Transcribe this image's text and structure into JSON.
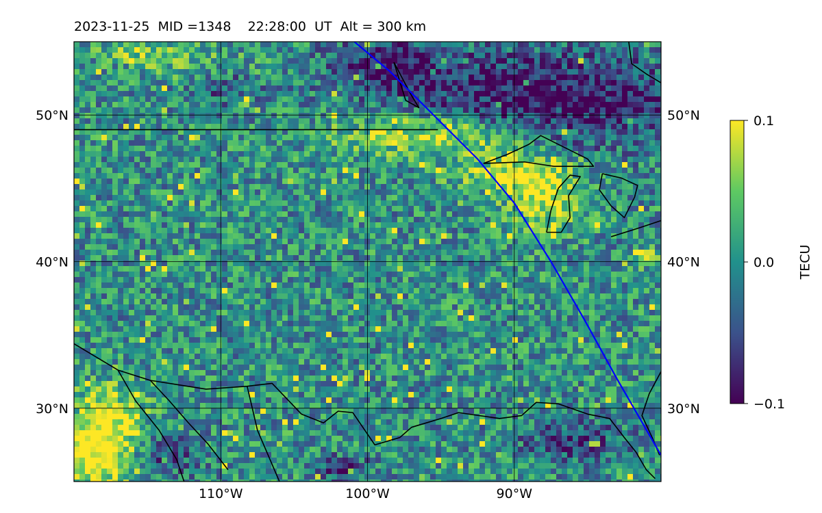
{
  "title": "2023-11-25  MID =1348    22:28:00  UT  Alt = 300 km",
  "map": {
    "lon_range": [
      -120,
      -80
    ],
    "lat_range": [
      25,
      55
    ],
    "lon_ticks": [
      -110,
      -100,
      -90
    ],
    "lon_tick_labels": [
      "110°W",
      "100°W",
      "90°W"
    ],
    "lat_ticks": [
      30,
      40,
      50
    ],
    "lat_tick_labels": [
      "30°N",
      "40°N",
      "50°N"
    ],
    "gridlines": true,
    "colormap": "viridis",
    "track_color": "#0000ff",
    "coastline_color": "#000000"
  },
  "colorbar": {
    "label": "TECU",
    "min": -0.1,
    "max": 0.1,
    "tick_values": [
      0.1,
      0.0,
      -0.1
    ],
    "tick_labels": [
      "0.1",
      "0.0",
      "−0.1"
    ]
  },
  "satellite_track": {
    "points": [
      [
        -100.9,
        55
      ],
      [
        -98.5,
        53
      ],
      [
        -95.5,
        50
      ],
      [
        -92.5,
        47
      ],
      [
        -90.0,
        44
      ],
      [
        -87.5,
        40
      ],
      [
        -85.2,
        36
      ],
      [
        -83.0,
        32
      ],
      [
        -80,
        26.8
      ]
    ]
  },
  "coastlines": {
    "canada_border": [
      [
        -120,
        49
      ],
      [
        -95.2,
        49
      ]
    ],
    "lake_superior": [
      [
        -92.1,
        46.7
      ],
      [
        -90.5,
        47.3
      ],
      [
        -89.0,
        48.0
      ],
      [
        -88.2,
        48.6
      ],
      [
        -85.0,
        47.0
      ],
      [
        -84.6,
        46.5
      ],
      [
        -87.3,
        46.5
      ],
      [
        -89.3,
        46.8
      ],
      [
        -92.1,
        46.7
      ]
    ],
    "lake_michigan": [
      [
        -87.8,
        42.0
      ],
      [
        -87.5,
        43.5
      ],
      [
        -87.0,
        45.0
      ],
      [
        -86.2,
        45.9
      ],
      [
        -85.5,
        45.8
      ],
      [
        -86.3,
        44.5
      ],
      [
        -86.2,
        43.0
      ],
      [
        -86.8,
        42.0
      ],
      [
        -87.8,
        42.0
      ]
    ],
    "lake_huron": [
      [
        -84.0,
        46.0
      ],
      [
        -82.7,
        45.7
      ],
      [
        -81.6,
        45.2
      ],
      [
        -81.8,
        44.4
      ],
      [
        -82.5,
        43.0
      ],
      [
        -83.4,
        43.8
      ],
      [
        -84.2,
        44.9
      ],
      [
        -84.0,
        46.0
      ]
    ],
    "lake_erie": [
      [
        -83.4,
        41.7
      ],
      [
        -81.5,
        42.3
      ],
      [
        -80,
        42.8
      ]
    ],
    "hudson_bay_edge": [
      [
        -82.2,
        55
      ],
      [
        -82.0,
        53.5
      ],
      [
        -81.0,
        52.8
      ],
      [
        -80,
        52.2
      ]
    ],
    "winnipeg_lake": [
      [
        -98.2,
        53.6
      ],
      [
        -97.4,
        51.0
      ],
      [
        -96.5,
        50.5
      ],
      [
        -97.1,
        51.5
      ],
      [
        -98.2,
        53.6
      ]
    ],
    "gulf_coast": [
      [
        -120,
        34.4
      ],
      [
        -117.0,
        32.6
      ],
      [
        -114.8,
        31.9
      ],
      [
        -111.0,
        31.3
      ],
      [
        -108.2,
        31.5
      ],
      [
        -106.5,
        31.7
      ],
      [
        -104.5,
        29.6
      ],
      [
        -103.0,
        29.0
      ],
      [
        -102.0,
        29.8
      ],
      [
        -101.0,
        29.7
      ],
      [
        -99.5,
        27.5
      ],
      [
        -97.8,
        28.0
      ],
      [
        -97.0,
        28.7
      ],
      [
        -95.0,
        29.3
      ],
      [
        -93.8,
        29.7
      ],
      [
        -91.0,
        29.3
      ],
      [
        -89.5,
        29.5
      ],
      [
        -88.5,
        30.4
      ],
      [
        -87.0,
        30.3
      ],
      [
        -85.0,
        29.6
      ],
      [
        -83.5,
        29.3
      ],
      [
        -82.5,
        28.0
      ],
      [
        -81.7,
        27.0
      ],
      [
        -81.0,
        25.8
      ],
      [
        -80.4,
        25.2
      ]
    ],
    "baja": [
      [
        -117.0,
        32.6
      ],
      [
        -115.8,
        30.5
      ],
      [
        -114.2,
        28.5
      ],
      [
        -113.0,
        26.5
      ],
      [
        -112.5,
        25.0
      ]
    ],
    "gulf_of_california": [
      [
        -114.8,
        31.9
      ],
      [
        -113.5,
        30.5
      ],
      [
        -112.2,
        29.0
      ],
      [
        -110.9,
        27.6
      ],
      [
        -109.5,
        25.8
      ]
    ],
    "mexico_mainland": [
      [
        -108.2,
        31.5
      ],
      [
        -107.5,
        28.5
      ],
      [
        -106.0,
        25.0
      ]
    ],
    "florida_east": [
      [
        -80.0,
        32.5
      ],
      [
        -80.8,
        31.0
      ],
      [
        -81.3,
        29.5
      ],
      [
        -80.6,
        28.0
      ],
      [
        -80.1,
        26.8
      ]
    ]
  },
  "tec_features": [
    {
      "lon": -95.0,
      "lat": 48.7,
      "rx": 7.0,
      "ry": 1.6,
      "v": 0.1
    },
    {
      "lon": -88.0,
      "lat": 44.5,
      "rx": 2.5,
      "ry": 2.2,
      "v": 0.09
    },
    {
      "lon": -90.5,
      "lat": 46.0,
      "rx": 3.5,
      "ry": 1.2,
      "v": 0.08
    },
    {
      "lon": -88.0,
      "lat": 51.0,
      "rx": 10.0,
      "ry": 3.2,
      "v": -0.1
    },
    {
      "lon": -98.5,
      "lat": 53.5,
      "rx": 4.0,
      "ry": 1.6,
      "v": -0.08
    },
    {
      "lon": -117.5,
      "lat": 28.0,
      "rx": 2.5,
      "ry": 3.5,
      "v": 0.1
    },
    {
      "lon": -119.0,
      "lat": 27.0,
      "rx": 1.8,
      "ry": 2.5,
      "v": 0.06
    },
    {
      "lon": -114.0,
      "lat": 27.0,
      "rx": 2.5,
      "ry": 1.6,
      "v": -0.06
    },
    {
      "lon": -101.5,
      "lat": 25.8,
      "rx": 1.5,
      "ry": 0.9,
      "v": -0.08
    },
    {
      "lon": -86.0,
      "lat": 27.8,
      "rx": 3.5,
      "ry": 1.4,
      "v": -0.06
    },
    {
      "lon": -112.0,
      "lat": 53.5,
      "rx": 4.0,
      "ry": 1.3,
      "v": 0.04
    },
    {
      "lon": -116.0,
      "lat": 54.5,
      "rx": 2.0,
      "ry": 0.8,
      "v": 0.05
    },
    {
      "lon": -110.0,
      "lat": 52.0,
      "rx": 2.5,
      "ry": 1.2,
      "v": -0.05
    },
    {
      "lon": -81.0,
      "lat": 40.3,
      "rx": 1.0,
      "ry": 0.6,
      "v": 0.08
    }
  ]
}
